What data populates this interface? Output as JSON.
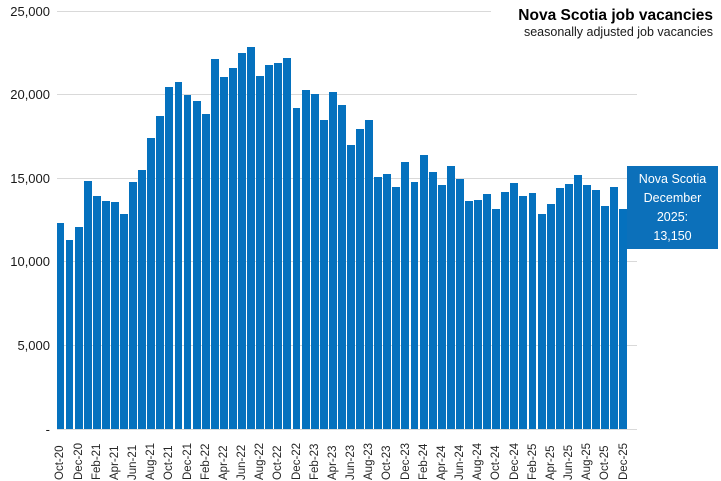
{
  "title": "Nova Scotia job vacancies",
  "subtitle": "seasonally adjusted job vacancies",
  "callout": {
    "lines": [
      "Nova Scotia",
      "December",
      "2025:",
      "13,150"
    ],
    "bg_color": "#0C70BA",
    "text_color": "#FFFFFF"
  },
  "colors": {
    "bar": "#0571BE",
    "gridline": "#D9D9D9",
    "axis_text": "#262626",
    "title_text": "#000000"
  },
  "chart_data": {
    "type": "bar",
    "title": "Nova Scotia job vacancies",
    "subtitle": "seasonally adjusted job vacancies",
    "xlabel": "",
    "ylabel": "",
    "ylim": [
      0,
      25000
    ],
    "grid": "horizontal",
    "legend": "none",
    "y_ticks": [
      {
        "label": "25,000",
        "value": 25000
      },
      {
        "label": "20,000",
        "value": 20000
      },
      {
        "label": "15,000",
        "value": 15000
      },
      {
        "label": "10,000",
        "value": 10000
      },
      {
        "label": "5,000",
        "value": 5000
      },
      {
        "label": "-",
        "value": 0
      }
    ],
    "x_tick_labels": [
      "Oct-20",
      "Dec-20",
      "Feb-21",
      "Apr-21",
      "Jun-21",
      "Aug-21",
      "Oct-21",
      "Dec-21",
      "Feb-22",
      "Apr-22",
      "Jun-22",
      "Aug-22",
      "Oct-22",
      "Dec-22",
      "Feb-23",
      "Apr-23",
      "Jun-23",
      "Aug-23",
      "Oct-23",
      "Dec-23",
      "Feb-24",
      "Apr-24",
      "Jun-24",
      "Aug-24",
      "Oct-24",
      "Dec-24",
      "Feb-25",
      "Apr-25",
      "Jun-25",
      "Aug-25",
      "Oct-25",
      "Dec-25"
    ],
    "categories": [
      "Oct-20",
      "Nov-20",
      "Dec-20",
      "Jan-21",
      "Feb-21",
      "Mar-21",
      "Apr-21",
      "May-21",
      "Jun-21",
      "Jul-21",
      "Aug-21",
      "Sep-21",
      "Oct-21",
      "Nov-21",
      "Dec-21",
      "Jan-22",
      "Feb-22",
      "Mar-22",
      "Apr-22",
      "May-22",
      "Jun-22",
      "Jul-22",
      "Aug-22",
      "Sep-22",
      "Oct-22",
      "Nov-22",
      "Dec-22",
      "Jan-23",
      "Feb-23",
      "Mar-23",
      "Apr-23",
      "May-23",
      "Jun-23",
      "Jul-23",
      "Aug-23",
      "Sep-23",
      "Oct-23",
      "Nov-23",
      "Dec-23",
      "Jan-24",
      "Feb-24",
      "Mar-24",
      "Apr-24",
      "May-24",
      "Jun-24",
      "Jul-24",
      "Aug-24",
      "Sep-24",
      "Oct-24",
      "Nov-24",
      "Dec-24",
      "Jan-25",
      "Feb-25",
      "Mar-25",
      "Apr-25",
      "May-25",
      "Jun-25",
      "Jul-25",
      "Aug-25",
      "Sep-25",
      "Oct-25",
      "Nov-25",
      "Dec-25"
    ],
    "values": [
      12300,
      11330,
      12070,
      14860,
      13930,
      13630,
      13560,
      12890,
      14760,
      15500,
      17390,
      18730,
      20440,
      20740,
      19960,
      19600,
      18850,
      22160,
      21080,
      21600,
      22500,
      22850,
      21090,
      21770,
      21870,
      22200,
      19200,
      20300,
      20040,
      18460,
      20140,
      19360,
      17000,
      17960,
      18500,
      15100,
      15260,
      14480,
      15980,
      14780,
      16380,
      15380,
      14580,
      15720,
      14980,
      13630,
      13720,
      14030,
      13170,
      14160,
      14720,
      13920,
      14140,
      12870,
      13480,
      14440,
      14640,
      15180,
      14620,
      14320,
      13370,
      14480,
      13150
    ]
  }
}
